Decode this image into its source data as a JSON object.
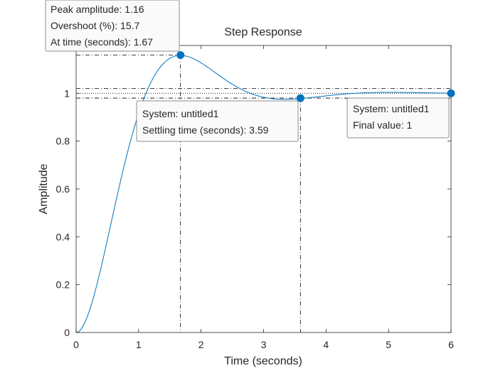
{
  "chart_data": {
    "type": "line",
    "title": "Step Response",
    "xlabel": "Time (seconds)",
    "ylabel": "Amplitude",
    "xlim": [
      0,
      6
    ],
    "ylim": [
      0,
      1.2
    ],
    "xticks": [
      0,
      1,
      2,
      3,
      4,
      5,
      6
    ],
    "yticks": [
      0,
      0.2,
      0.4,
      0.6,
      0.8,
      1
    ],
    "xtick_labels": [
      "0",
      "1",
      "2",
      "3",
      "4",
      "5",
      "6"
    ],
    "ytick_labels": [
      "0",
      "0.2",
      "0.4",
      "0.6",
      "0.8",
      "1"
    ],
    "grid": false,
    "line_color": "#0072bd",
    "series": [
      {
        "x": [
          0,
          0.1,
          0.2,
          0.3,
          0.4,
          0.5,
          0.6,
          0.7,
          0.8,
          0.9,
          1.0,
          1.1,
          1.2,
          1.3,
          1.4,
          1.5,
          1.6,
          1.67,
          1.8,
          1.9,
          2.0,
          2.1,
          2.2,
          2.3,
          2.4,
          2.5,
          2.6,
          2.7,
          2.8,
          2.9,
          3.0,
          3.1,
          3.2,
          3.3,
          3.4,
          3.5,
          3.59,
          3.7,
          3.8,
          3.9,
          4.0,
          4.2,
          4.4,
          4.6,
          4.8,
          5.0,
          5.2,
          5.4,
          5.6,
          5.8,
          6.0
        ],
        "y": [
          0,
          0.012,
          0.05,
          0.11,
          0.188,
          0.281,
          0.383,
          0.49,
          0.596,
          0.697,
          0.79,
          0.872,
          0.942,
          1.0,
          1.045,
          1.08,
          1.104,
          1.16,
          1.15,
          1.14,
          1.126,
          1.108,
          1.088,
          1.066,
          1.045,
          1.025,
          1.008,
          0.994,
          0.985,
          0.98,
          0.978,
          0.978,
          0.98,
          0.983,
          0.986,
          0.99,
          0.98,
          0.995,
          0.997,
          0.998,
          0.999,
          1.0,
          1.0,
          1.0,
          1.0,
          1.0,
          1.0,
          1.0,
          1.0,
          1.0,
          1.0
        ]
      }
    ],
    "markers": {
      "peak": {
        "t": 1.67,
        "y": 1.16
      },
      "settling": {
        "t": 3.59,
        "y": 0.98
      },
      "final": {
        "t": 6.0,
        "y": 1.0
      }
    },
    "settling_band": [
      0.98,
      1.02
    ],
    "annotations": {
      "peak": [
        "Peak amplitude: 1.16",
        "Overshoot (%): 15.7",
        "At time (seconds): 1.67"
      ],
      "settling": [
        "System: untitled1",
        "Settling time (seconds): 3.59"
      ],
      "final": [
        "System: untitled1",
        "Final value: 1"
      ]
    }
  }
}
